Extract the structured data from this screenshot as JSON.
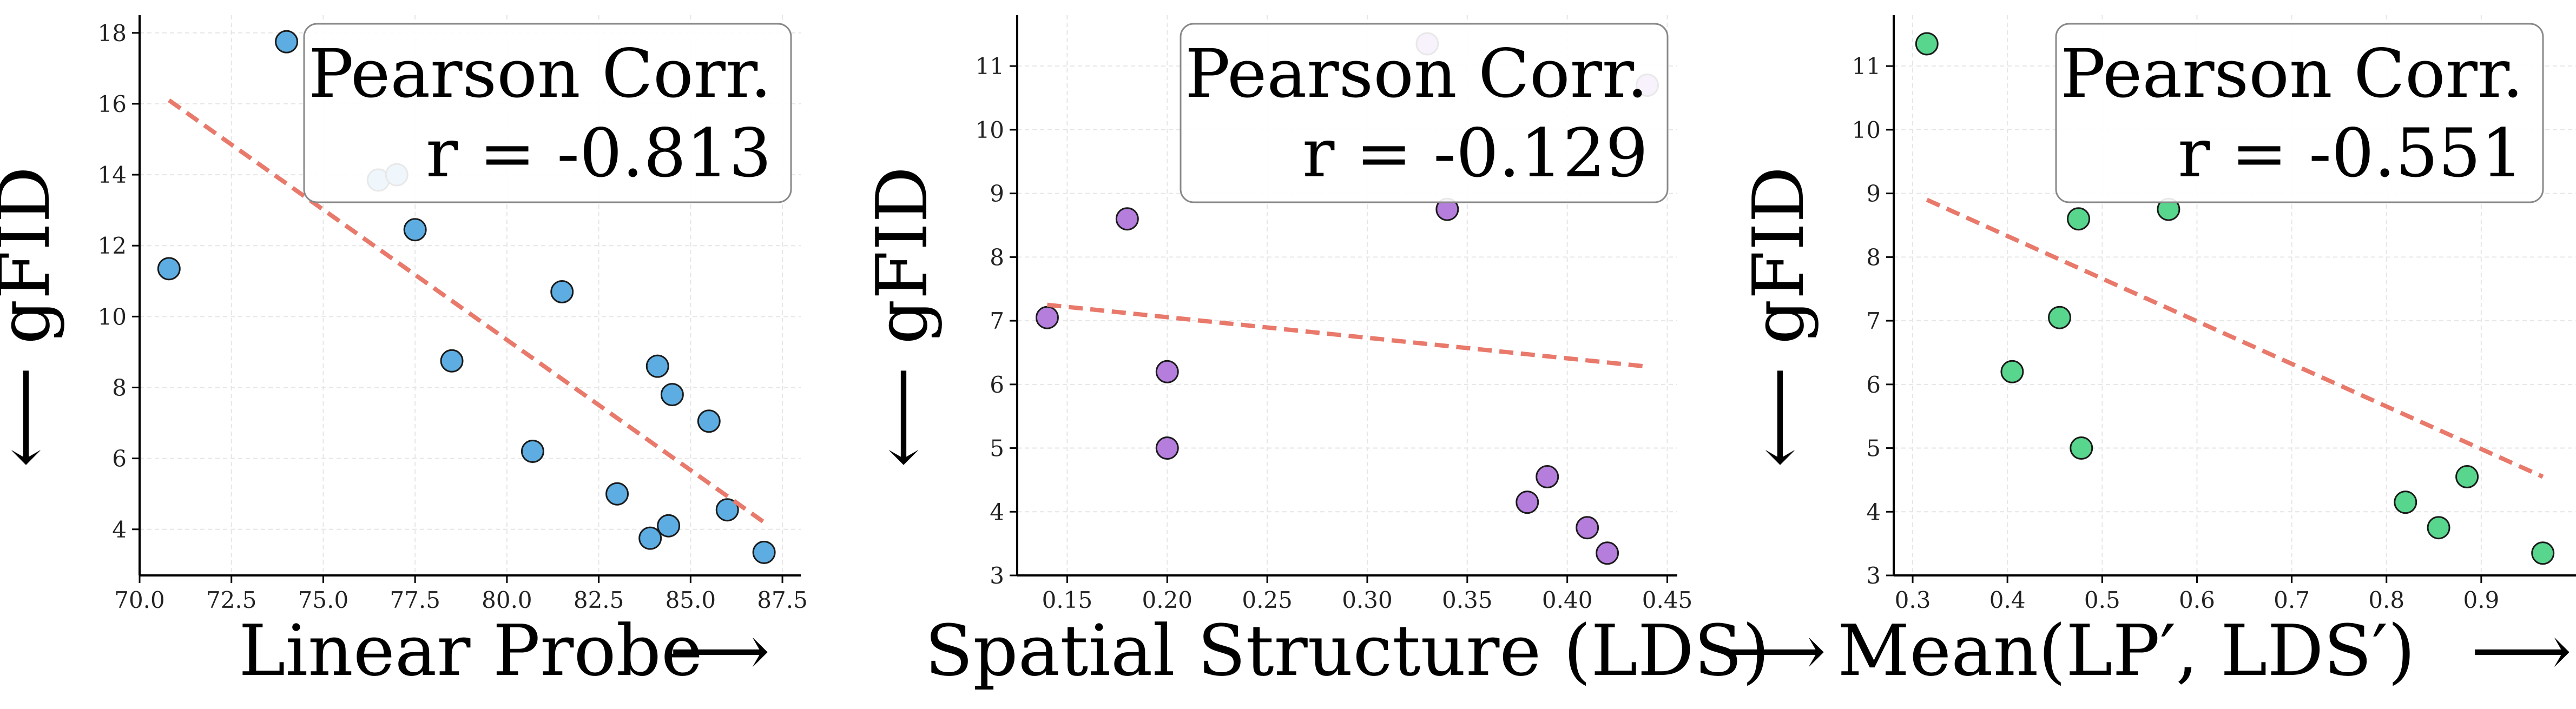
{
  "chart_data": [
    {
      "type": "scatter",
      "id": "linear-probe",
      "xlabel": "Linear Probe",
      "ylabel": "gFID",
      "x_arrow": "⟶",
      "y_arrow": "⟵",
      "xlim": [
        70,
        88
      ],
      "ylim": [
        2.7,
        18.5
      ],
      "xticks": [
        70.0,
        72.5,
        75.0,
        77.5,
        80.0,
        82.5,
        85.0,
        87.5
      ],
      "xtick_labels": [
        "70.0",
        "72.5",
        "75.0",
        "77.5",
        "80.0",
        "82.5",
        "85.0",
        "87.5"
      ],
      "yticks": [
        4,
        6,
        8,
        10,
        12,
        14,
        16,
        18
      ],
      "ytick_labels": [
        "4",
        "6",
        "8",
        "10",
        "12",
        "14",
        "16",
        "18"
      ],
      "grid": true,
      "point_color": "#5DADE2",
      "x": [
        70.8,
        74.0,
        76.5,
        77.0,
        77.5,
        78.5,
        80.7,
        81.5,
        83.0,
        83.9,
        84.1,
        84.4,
        84.5,
        85.5,
        86.0,
        87.0
      ],
      "y": [
        11.35,
        17.75,
        13.85,
        14.0,
        12.45,
        8.75,
        6.2,
        10.7,
        5.0,
        3.75,
        8.6,
        4.1,
        7.8,
        7.05,
        4.55,
        3.35
      ],
      "fit_line": {
        "x": [
          70.8,
          87.0
        ],
        "y": [
          16.1,
          4.2
        ],
        "color": "#E8796B"
      },
      "legend": {
        "line1": "Pearson Corr.",
        "line2": "r = -0.813",
        "placement": "top-right"
      }
    },
    {
      "type": "scatter",
      "id": "spatial-structure",
      "xlabel": "Spatial Structure (LDS)",
      "ylabel": "gFID",
      "x_arrow": "⟶",
      "y_arrow": "⟵",
      "xlim": [
        0.125,
        0.455
      ],
      "ylim": [
        3.0,
        11.8
      ],
      "xticks": [
        0.15,
        0.2,
        0.25,
        0.3,
        0.35,
        0.4,
        0.45
      ],
      "xtick_labels": [
        "0.15",
        "0.20",
        "0.25",
        "0.30",
        "0.35",
        "0.40",
        "0.45"
      ],
      "yticks": [
        3,
        4,
        5,
        6,
        7,
        8,
        9,
        10,
        11
      ],
      "ytick_labels": [
        "3",
        "4",
        "5",
        "6",
        "7",
        "8",
        "9",
        "10",
        "11"
      ],
      "grid": true,
      "point_color": "#B57EDC",
      "x": [
        0.14,
        0.18,
        0.2,
        0.2,
        0.33,
        0.34,
        0.38,
        0.39,
        0.41,
        0.42,
        0.44
      ],
      "y": [
        7.05,
        8.6,
        6.2,
        5.0,
        11.35,
        8.75,
        4.15,
        4.55,
        3.75,
        3.35,
        10.7
      ],
      "fit_line": {
        "x": [
          0.14,
          0.44
        ],
        "y": [
          7.25,
          6.28
        ],
        "color": "#E8796B"
      },
      "legend": {
        "line1": "Pearson Corr.",
        "line2": "r = -0.129",
        "placement": "top-right"
      }
    },
    {
      "type": "scatter",
      "id": "mean-lp-lds",
      "xlabel": "Mean(LP′, LDS′)",
      "ylabel": "gFID",
      "x_arrow": "⟶",
      "y_arrow": "⟵",
      "xlim": [
        0.28,
        1.0
      ],
      "ylim": [
        3.0,
        11.8
      ],
      "xticks": [
        0.3,
        0.4,
        0.5,
        0.6,
        0.7,
        0.8,
        0.9
      ],
      "xtick_labels": [
        "0.3",
        "0.4",
        "0.5",
        "0.6",
        "0.7",
        "0.8",
        "0.9"
      ],
      "yticks": [
        3,
        4,
        5,
        6,
        7,
        8,
        9,
        10,
        11
      ],
      "ytick_labels": [
        "3",
        "4",
        "5",
        "6",
        "7",
        "8",
        "9",
        "10",
        "11"
      ],
      "grid": true,
      "point_color": "#58D68D",
      "x": [
        0.315,
        0.405,
        0.455,
        0.475,
        0.478,
        0.57,
        0.82,
        0.855,
        0.885,
        0.965
      ],
      "y": [
        11.35,
        6.2,
        7.05,
        8.6,
        5.0,
        8.75,
        4.15,
        3.75,
        4.55,
        3.35
      ],
      "fit_line": {
        "x": [
          0.315,
          0.965
        ],
        "y": [
          8.9,
          4.55
        ],
        "color": "#E8796B"
      },
      "legend": {
        "line1": "Pearson Corr.",
        "line2": "r = -0.551",
        "placement": "top-right"
      }
    }
  ]
}
